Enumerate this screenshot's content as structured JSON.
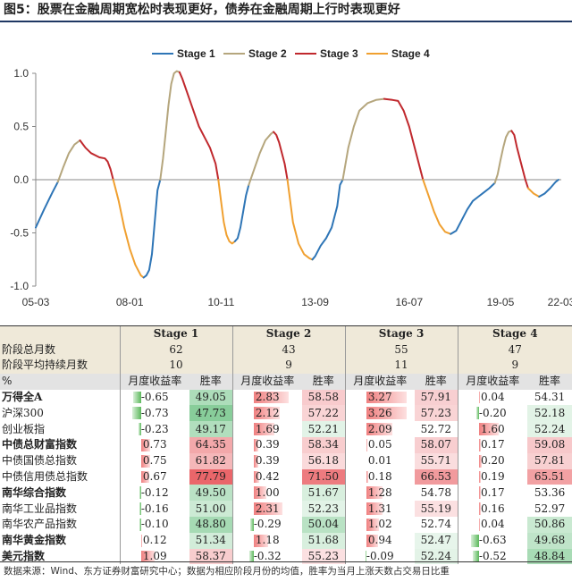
{
  "title": "图5：股票在金融周期宽松时表现更好，债券在金融周期上行时表现更好",
  "source": "数据来源：Wind、东方证券财富研究中心；数据为相应阶段月份的均值，胜率为当月上涨天数占交易日比重",
  "colors": {
    "stage1": "#2e75b6",
    "stage2": "#b5a67d",
    "stage3": "#c0282d",
    "stage4": "#f0a030",
    "pos": "#f4a4a4",
    "pos_strong": "#e8676b",
    "neg": "#63be7b"
  },
  "chart_data": {
    "type": "line",
    "x_tick_labels": [
      "05-03",
      "08-01",
      "10-11",
      "13-09",
      "16-07",
      "19-05",
      "22-03"
    ],
    "ylim": [
      -1.0,
      1.0
    ],
    "y_ticks": [
      -1.0,
      -0.5,
      0.0,
      0.5,
      1.0
    ],
    "y_tick_labels": [
      "-1.0",
      "-0.5",
      "0.0",
      "0.5",
      "1.0"
    ],
    "legend_position": "top",
    "series": [
      {
        "name": "Stage 1",
        "color": "#2e75b6"
      },
      {
        "name": "Stage 2",
        "color": "#b5a67d"
      },
      {
        "name": "Stage 3",
        "color": "#c0282d"
      },
      {
        "name": "Stage 4",
        "color": "#f0a030"
      }
    ],
    "segments": [
      {
        "stage": 1,
        "points": [
          [
            0,
            -0.45
          ],
          [
            3,
            -0.28
          ],
          [
            6,
            -0.12
          ],
          [
            8,
            -0.02
          ]
        ]
      },
      {
        "stage": 2,
        "points": [
          [
            8,
            -0.02
          ],
          [
            10,
            0.12
          ],
          [
            12,
            0.25
          ],
          [
            14,
            0.33
          ],
          [
            16,
            0.37
          ]
        ]
      },
      {
        "stage": 3,
        "points": [
          [
            16,
            0.37
          ],
          [
            18,
            0.3
          ],
          [
            20,
            0.25
          ],
          [
            23,
            0.21
          ],
          [
            25,
            0.2
          ],
          [
            26,
            0.17
          ],
          [
            27,
            0.1
          ],
          [
            28,
            0.0
          ]
        ]
      },
      {
        "stage": 4,
        "points": [
          [
            28,
            0.0
          ],
          [
            30,
            -0.2
          ],
          [
            32,
            -0.45
          ],
          [
            34,
            -0.65
          ],
          [
            36,
            -0.8
          ],
          [
            38,
            -0.9
          ],
          [
            39,
            -0.92
          ]
        ]
      },
      {
        "stage": 1,
        "points": [
          [
            39,
            -0.92
          ],
          [
            40,
            -0.9
          ],
          [
            41,
            -0.85
          ],
          [
            42,
            -0.7
          ],
          [
            43,
            -0.4
          ],
          [
            44,
            -0.1
          ],
          [
            45,
            0.0
          ]
        ]
      },
      {
        "stage": 2,
        "points": [
          [
            45,
            0.0
          ],
          [
            46,
            0.2
          ],
          [
            47,
            0.45
          ],
          [
            48,
            0.7
          ],
          [
            49,
            0.9
          ],
          [
            50,
            1.0
          ],
          [
            51,
            1.02
          ],
          [
            52,
            1.01
          ]
        ]
      },
      {
        "stage": 3,
        "points": [
          [
            52,
            1.01
          ],
          [
            53,
            0.95
          ],
          [
            55,
            0.8
          ],
          [
            57,
            0.65
          ],
          [
            59,
            0.5
          ],
          [
            61,
            0.4
          ],
          [
            63,
            0.3
          ],
          [
            65,
            0.15
          ],
          [
            66,
            0.0
          ]
        ]
      },
      {
        "stage": 4,
        "points": [
          [
            66,
            0.0
          ],
          [
            67,
            -0.2
          ],
          [
            68,
            -0.4
          ],
          [
            69,
            -0.52
          ],
          [
            70,
            -0.58
          ],
          [
            71,
            -0.6
          ],
          [
            72,
            -0.58
          ]
        ]
      },
      {
        "stage": 1,
        "points": [
          [
            72,
            -0.58
          ],
          [
            73,
            -0.55
          ],
          [
            74,
            -0.45
          ],
          [
            75,
            -0.3
          ],
          [
            76,
            -0.15
          ],
          [
            77,
            -0.05
          ]
        ]
      },
      {
        "stage": 2,
        "points": [
          [
            77,
            -0.05
          ],
          [
            79,
            0.1
          ],
          [
            81,
            0.25
          ],
          [
            83,
            0.37
          ],
          [
            85,
            0.43
          ],
          [
            86,
            0.45
          ]
        ]
      },
      {
        "stage": 3,
        "points": [
          [
            86,
            0.45
          ],
          [
            87,
            0.42
          ],
          [
            88,
            0.35
          ],
          [
            89,
            0.25
          ],
          [
            90,
            0.15
          ],
          [
            91,
            0.0
          ]
        ]
      },
      {
        "stage": 4,
        "points": [
          [
            91,
            0.0
          ],
          [
            92,
            -0.2
          ],
          [
            93,
            -0.4
          ],
          [
            95,
            -0.6
          ],
          [
            97,
            -0.7
          ],
          [
            99,
            -0.74
          ],
          [
            100,
            -0.75
          ]
        ]
      },
      {
        "stage": 1,
        "points": [
          [
            100,
            -0.75
          ],
          [
            101,
            -0.72
          ],
          [
            103,
            -0.62
          ],
          [
            105,
            -0.55
          ],
          [
            107,
            -0.45
          ],
          [
            109,
            -0.25
          ],
          [
            110,
            -0.05
          ],
          [
            111,
            0.0
          ]
        ]
      },
      {
        "stage": 2,
        "points": [
          [
            111,
            0.0
          ],
          [
            113,
            0.3
          ],
          [
            115,
            0.5
          ],
          [
            117,
            0.65
          ],
          [
            120,
            0.72
          ],
          [
            123,
            0.75
          ],
          [
            126,
            0.76
          ]
        ]
      },
      {
        "stage": 3,
        "points": [
          [
            126,
            0.76
          ],
          [
            129,
            0.75
          ],
          [
            131,
            0.74
          ],
          [
            133,
            0.65
          ],
          [
            135,
            0.5
          ],
          [
            137,
            0.3
          ],
          [
            139,
            0.1
          ],
          [
            140,
            0.0
          ]
        ]
      },
      {
        "stage": 4,
        "points": [
          [
            140,
            0.0
          ],
          [
            142,
            -0.15
          ],
          [
            144,
            -0.3
          ],
          [
            146,
            -0.42
          ],
          [
            148,
            -0.49
          ],
          [
            150,
            -0.51
          ]
        ]
      },
      {
        "stage": 1,
        "points": [
          [
            150,
            -0.51
          ],
          [
            152,
            -0.48
          ],
          [
            154,
            -0.38
          ],
          [
            156,
            -0.28
          ],
          [
            158,
            -0.2
          ],
          [
            160,
            -0.16
          ],
          [
            162,
            -0.12
          ],
          [
            164,
            -0.08
          ],
          [
            166,
            -0.03
          ]
        ]
      },
      {
        "stage": 2,
        "points": [
          [
            166,
            -0.03
          ],
          [
            167,
            0.05
          ],
          [
            168,
            0.18
          ],
          [
            169,
            0.3
          ],
          [
            170,
            0.4
          ],
          [
            171,
            0.45
          ],
          [
            172,
            0.46
          ]
        ]
      },
      {
        "stage": 3,
        "points": [
          [
            172,
            0.46
          ],
          [
            173,
            0.42
          ],
          [
            174,
            0.3
          ],
          [
            175,
            0.2
          ],
          [
            176,
            0.1
          ],
          [
            177,
            0.0
          ],
          [
            178,
            -0.08
          ]
        ]
      },
      {
        "stage": 4,
        "points": [
          [
            178,
            -0.08
          ],
          [
            180,
            -0.13
          ],
          [
            182,
            -0.16
          ]
        ]
      },
      {
        "stage": 1,
        "points": [
          [
            182,
            -0.16
          ],
          [
            184,
            -0.13
          ],
          [
            186,
            -0.08
          ],
          [
            188,
            -0.02
          ],
          [
            189,
            0.0
          ]
        ]
      }
    ],
    "x_total": 190,
    "x_tick_positions": [
      0,
      34,
      67,
      101,
      135,
      168,
      190
    ]
  },
  "table": {
    "stage_headers": [
      "Stage 1",
      "Stage 2",
      "Stage 3",
      "Stage 4"
    ],
    "row_total_months": {
      "label": "阶段总月数",
      "values": [
        "62",
        "43",
        "55",
        "47"
      ]
    },
    "row_avg_months": {
      "label": "阶段平均持续月数",
      "values": [
        "10",
        "9",
        "11",
        "9"
      ]
    },
    "subheader": {
      "label": "%",
      "ret": "月度收益率",
      "win": "胜率"
    },
    "rows": [
      {
        "name": "万得全A",
        "bold": true,
        "ret": [
          "-0.65",
          "2.83",
          "3.27",
          "0.04"
        ],
        "win": [
          "49.05",
          "58.58",
          "57.91",
          "54.31"
        ],
        "ret_n": [
          -0.65,
          2.83,
          3.27,
          0.04
        ],
        "win_n": [
          49.05,
          58.58,
          57.91,
          54.31
        ]
      },
      {
        "name": "沪深300",
        "bold": false,
        "ret": [
          "-0.73",
          "2.12",
          "3.26",
          "-0.20"
        ],
        "win": [
          "47.73",
          "57.22",
          "57.23",
          "52.18"
        ],
        "ret_n": [
          -0.73,
          2.12,
          3.26,
          -0.2
        ],
        "win_n": [
          47.73,
          57.22,
          57.23,
          52.18
        ]
      },
      {
        "name": "创业板指",
        "bold": false,
        "ret": [
          "-0.23",
          "1.69",
          "2.09",
          "1.60"
        ],
        "win": [
          "49.17",
          "52.21",
          "52.72",
          "52.24"
        ],
        "ret_n": [
          -0.23,
          1.69,
          2.09,
          1.6
        ],
        "win_n": [
          49.17,
          52.21,
          52.72,
          52.24
        ]
      },
      {
        "name": "中债总财富指数",
        "bold": true,
        "ret": [
          "0.73",
          "0.39",
          "0.05",
          "0.17"
        ],
        "win": [
          "64.35",
          "58.34",
          "58.07",
          "59.08"
        ],
        "ret_n": [
          0.73,
          0.39,
          0.05,
          0.17
        ],
        "win_n": [
          64.35,
          58.34,
          58.07,
          59.08
        ]
      },
      {
        "name": "中债国债总指数",
        "bold": false,
        "ret": [
          "0.75",
          "0.39",
          "0.01",
          "0.20"
        ],
        "win": [
          "61.82",
          "56.18",
          "55.71",
          "57.81"
        ],
        "ret_n": [
          0.75,
          0.39,
          0.01,
          0.2
        ],
        "win_n": [
          61.82,
          56.18,
          55.71,
          57.81
        ]
      },
      {
        "name": "中债信用债总指数",
        "bold": false,
        "ret": [
          "0.67",
          "0.42",
          "0.18",
          "0.19"
        ],
        "win": [
          "77.79",
          "71.50",
          "66.53",
          "65.51"
        ],
        "ret_n": [
          0.67,
          0.42,
          0.18,
          0.19
        ],
        "win_n": [
          77.79,
          71.5,
          66.53,
          65.51
        ]
      },
      {
        "name": "南华综合指数",
        "bold": true,
        "ret": [
          "-0.12",
          "1.00",
          "1.28",
          "0.17"
        ],
        "win": [
          "49.50",
          "51.67",
          "54.78",
          "53.36"
        ],
        "ret_n": [
          -0.12,
          1.0,
          1.28,
          0.17
        ],
        "win_n": [
          49.5,
          51.67,
          54.78,
          53.36
        ]
      },
      {
        "name": "南华工业品指数",
        "bold": false,
        "ret": [
          "-0.16",
          "2.31",
          "1.31",
          "0.16"
        ],
        "win": [
          "51.00",
          "52.23",
          "55.19",
          "52.97"
        ],
        "ret_n": [
          -0.16,
          2.31,
          1.31,
          0.16
        ],
        "win_n": [
          51.0,
          52.23,
          55.19,
          52.97
        ]
      },
      {
        "name": "南华农产品指数",
        "bold": false,
        "ret": [
          "-0.10",
          "-0.29",
          "1.02",
          "0.04"
        ],
        "win": [
          "48.80",
          "50.04",
          "52.74",
          "50.86"
        ],
        "ret_n": [
          -0.1,
          -0.29,
          1.02,
          0.04
        ],
        "win_n": [
          48.8,
          50.04,
          52.74,
          50.86
        ]
      },
      {
        "name": "南华黄金指数",
        "bold": true,
        "ret": [
          "0.12",
          "1.18",
          "0.94",
          "-0.63"
        ],
        "win": [
          "51.34",
          "51.68",
          "52.47",
          "49.68"
        ],
        "ret_n": [
          0.12,
          1.18,
          0.94,
          -0.63
        ],
        "win_n": [
          51.34,
          51.68,
          52.47,
          49.68
        ]
      },
      {
        "name": "美元指数",
        "bold": true,
        "ret": [
          "1.09",
          "-0.32",
          "-0.09",
          "-0.52"
        ],
        "win": [
          "58.37",
          "55.23",
          "52.24",
          "48.84"
        ],
        "ret_n": [
          1.09,
          -0.32,
          -0.09,
          -0.52
        ],
        "win_n": [
          58.37,
          55.23,
          52.24,
          48.84
        ]
      }
    ]
  }
}
